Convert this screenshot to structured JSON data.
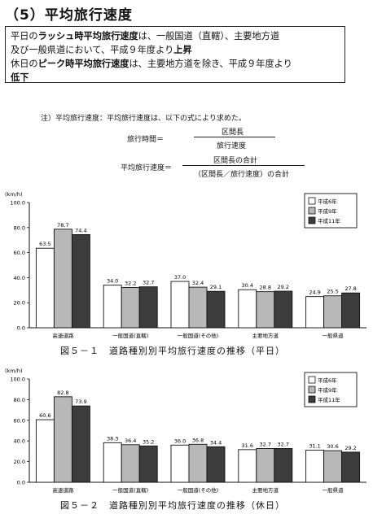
{
  "section_title": "（5）平均旅行速度",
  "summary": {
    "line1_a": "平日の",
    "line1_b": "ラッシュ時平均旅行速度",
    "line1_c": "は、一般国道（直轄）、主要地方道",
    "line2_a": "及び一般県道において、平成９年度より",
    "line2_b": "上昇",
    "line3_a": "休日の",
    "line3_b": "ピーク時平均旅行速度",
    "line3_c": "は、主要地方道を除き、平成９年度より",
    "line4_b": "低下"
  },
  "note": "注）平均旅行速度：平均旅行速度は、以下の式により求めた。",
  "formula1": {
    "lhs": "旅行時間＝",
    "numerator": "区間長",
    "denominator": "旅行速度"
  },
  "formula2": {
    "lhs": "平均旅行速度＝",
    "numerator": "区間長の合計",
    "denominator": "（区間長／旅行速度）の合計"
  },
  "colors": {
    "h6": "#ffffff",
    "h9": "#b8b8b8",
    "h11": "#3c3c3c",
    "stroke": "#111111"
  },
  "chart_data": [
    {
      "type": "bar",
      "title": "",
      "ylabel": "(km/h)",
      "ylim": [
        0,
        100
      ],
      "yticks": [
        "0.0",
        "20.0",
        "40.0",
        "60.0",
        "80.0",
        "100.0"
      ],
      "categories": [
        "高速道路",
        "一般国道(直轄)",
        "一般国道(その他)",
        "主要地方道",
        "一般県道"
      ],
      "series": [
        {
          "name": "平成6年",
          "values": [
            63.5,
            34.0,
            37.0,
            30.4,
            24.9
          ],
          "labels": [
            "63.5",
            "34.0",
            "37.0",
            "30.4",
            "24.9"
          ]
        },
        {
          "name": "平成9年",
          "values": [
            78.7,
            32.2,
            32.4,
            28.8,
            25.5
          ],
          "labels": [
            "78.7",
            "32.2",
            "32.4",
            "28.8",
            "25.5"
          ]
        },
        {
          "name": "平成11年",
          "values": [
            74.4,
            32.7,
            29.1,
            29.2,
            27.8
          ],
          "labels": [
            "74.4",
            "32.7",
            "29.1",
            "29.2",
            "27.8"
          ]
        }
      ],
      "legend_position": "top-right",
      "caption": "図５－１　道路種別別平均旅行速度の推移（平日）"
    },
    {
      "type": "bar",
      "title": "",
      "ylabel": "(km/h)",
      "ylim": [
        0,
        100
      ],
      "yticks": [
        "0.0",
        "20.0",
        "40.0",
        "60.0",
        "80.0",
        "100.0"
      ],
      "categories": [
        "高速道路",
        "一般国道(直轄)",
        "一般国道(その他)",
        "主要地方道",
        "一般県道"
      ],
      "series": [
        {
          "name": "平成6年",
          "values": [
            60.6,
            38.3,
            36.0,
            31.6,
            31.1
          ],
          "labels": [
            "60.6",
            "38.3",
            "36.0",
            "31.6",
            "31.1"
          ]
        },
        {
          "name": "平成9年",
          "values": [
            82.8,
            36.4,
            36.8,
            32.7,
            30.6
          ],
          "labels": [
            "82.8",
            "36.4",
            "36.8",
            "32.7",
            "30.6"
          ]
        },
        {
          "name": "平成11年",
          "values": [
            73.9,
            35.2,
            34.4,
            32.7,
            29.2
          ],
          "labels": [
            "73.9",
            "35.2",
            "34.4",
            "32.7",
            "29.2"
          ]
        }
      ],
      "legend_position": "top-right",
      "caption": "図５－２　道路種別別平均旅行速度の推移（休日）"
    }
  ]
}
